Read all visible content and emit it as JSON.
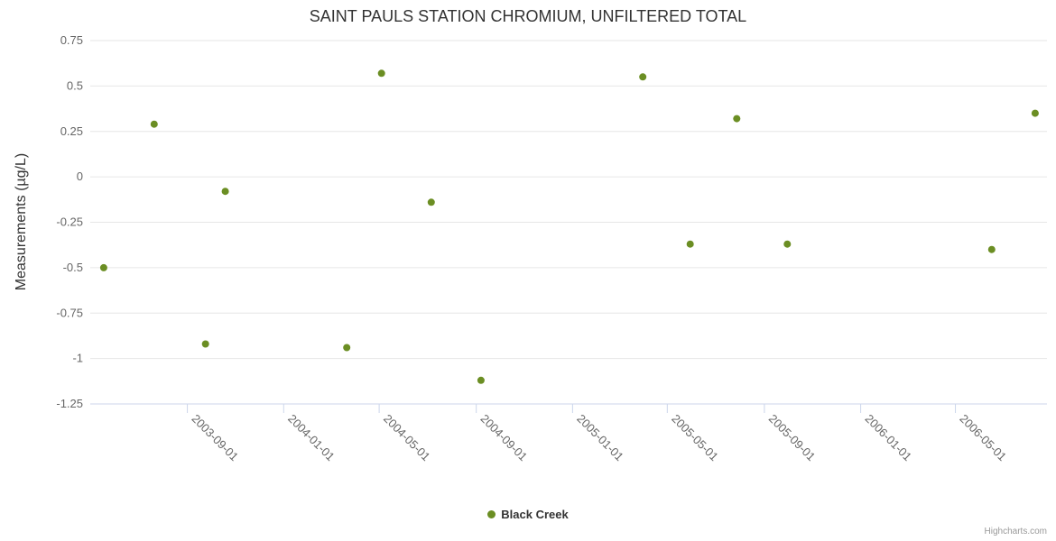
{
  "chart_data": {
    "type": "scatter",
    "title": "SAINT PAULS STATION CHROMIUM, UNFILTERED TOTAL",
    "xlabel": "",
    "ylabel": "Measurements (µg/L)",
    "grid": "horizontal",
    "legend_position": "bottom-center",
    "credits": "Highcharts.com",
    "xlim": [
      "2003-05-01",
      "2006-08-25"
    ],
    "ylim": [
      -1.25,
      0.75
    ],
    "xticks": [
      "2003-09-01",
      "2004-01-01",
      "2004-05-01",
      "2004-09-01",
      "2005-01-01",
      "2005-05-01",
      "2005-09-01",
      "2006-01-01",
      "2006-05-01"
    ],
    "yticks": [
      0.75,
      0.5,
      0.25,
      0,
      -0.25,
      -0.5,
      -0.75,
      -1,
      -1.25
    ],
    "ytick_labels": [
      "0.75",
      "0.5",
      "0.25",
      "0",
      "-0.25",
      "-0.5",
      "-0.75",
      "-1",
      "-1.25"
    ],
    "series": [
      {
        "name": "Black Creek",
        "color": "#6b8e23",
        "marker": "circle",
        "points": [
          [
            "2003-05-18",
            -0.5
          ],
          [
            "2003-07-21",
            0.29
          ],
          [
            "2003-09-24",
            -0.92
          ],
          [
            "2003-10-19",
            -0.08
          ],
          [
            "2004-03-21",
            -0.94
          ],
          [
            "2004-05-04",
            0.57
          ],
          [
            "2004-07-06",
            -0.14
          ],
          [
            "2004-09-07",
            -1.12
          ],
          [
            "2005-03-31",
            0.55
          ],
          [
            "2005-05-30",
            -0.37
          ],
          [
            "2005-07-28",
            0.32
          ],
          [
            "2005-09-30",
            -0.37
          ],
          [
            "2006-06-16",
            -0.4
          ],
          [
            "2006-08-10",
            0.35
          ]
        ]
      }
    ]
  }
}
